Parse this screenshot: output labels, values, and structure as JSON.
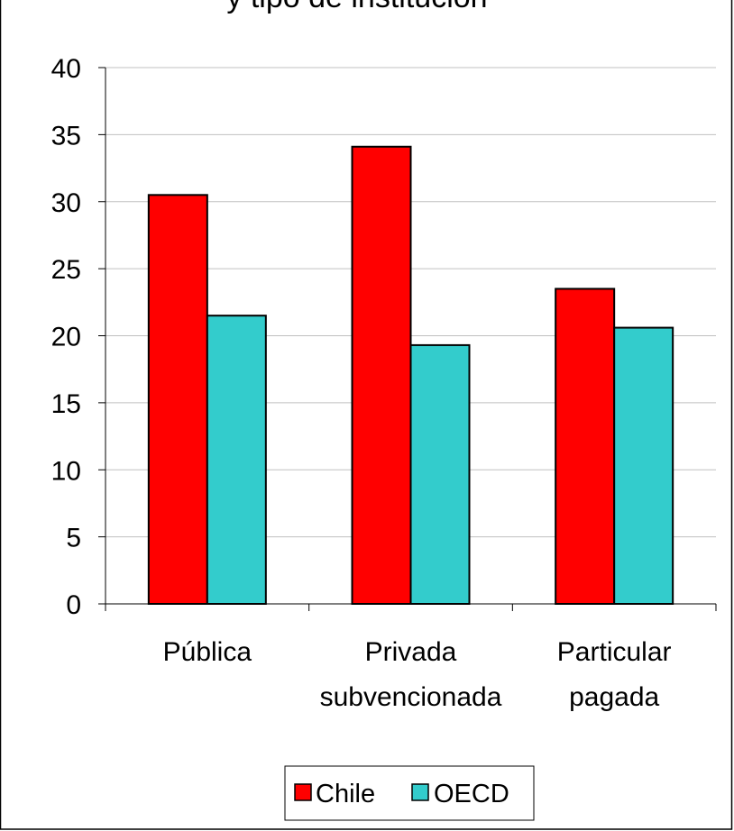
{
  "chart_data": {
    "type": "bar",
    "title": "y tipo de institución",
    "xlabel": "",
    "ylabel": "",
    "ylim": [
      0,
      40
    ],
    "yticks": [
      "0",
      "5",
      "10",
      "15",
      "20",
      "25",
      "30",
      "35",
      "40"
    ],
    "categories": [
      [
        "Pública"
      ],
      [
        "Privada",
        "subvencionada"
      ],
      [
        "Particular",
        "pagada"
      ]
    ],
    "series": [
      {
        "name": "Chile",
        "color": "#ff0000",
        "values": [
          30.5,
          34.1,
          23.5
        ]
      },
      {
        "name": "OECD",
        "color": "#33cccc",
        "values": [
          21.5,
          19.3,
          20.6
        ]
      }
    ],
    "grid": true,
    "legend_position": "bottom-center"
  }
}
